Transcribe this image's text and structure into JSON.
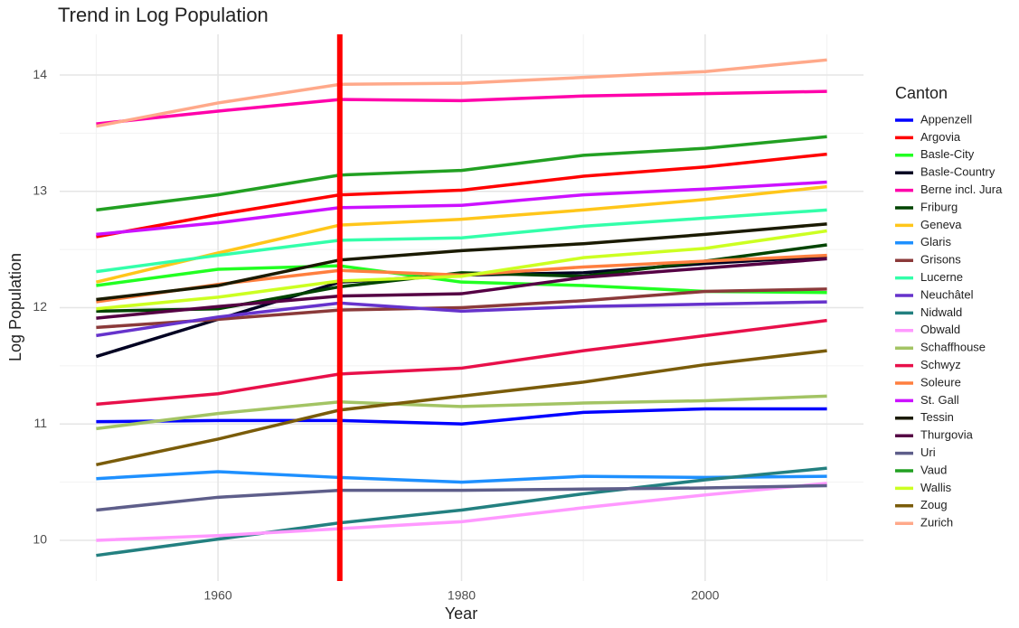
{
  "chart_data": {
    "type": "line",
    "title": "Trend in Log Population",
    "x_label": "Year",
    "y_label": "Log Population",
    "legend_title": "Canton",
    "legend": "right",
    "grid": true,
    "x": [
      1950,
      1960,
      1970,
      1980,
      1990,
      2000,
      2010
    ],
    "xlim": [
      1947,
      2013
    ],
    "ylim": [
      9.65,
      14.35
    ],
    "xticks": [
      1960,
      1980,
      2000
    ],
    "yticks": [
      10,
      11,
      12,
      13,
      14
    ],
    "minor_xticks": [
      1950,
      1970,
      1990,
      2010
    ],
    "minor_yticks": [
      10.5,
      11.5,
      12.5,
      13.5
    ],
    "vline": {
      "x": 1970,
      "color": "#ff0000"
    },
    "series": [
      {
        "name": "Appenzell",
        "color": "#0000ff",
        "values": [
          11.02,
          11.03,
          11.03,
          11.0,
          11.1,
          11.13,
          11.13
        ]
      },
      {
        "name": "Argovia",
        "color": "#ff0000",
        "values": [
          12.61,
          12.8,
          12.97,
          13.01,
          13.13,
          13.21,
          13.32
        ]
      },
      {
        "name": "Basle-City",
        "color": "#22ff22",
        "values": [
          12.19,
          12.33,
          12.36,
          12.22,
          12.19,
          12.14,
          12.13
        ]
      },
      {
        "name": "Basle-Country",
        "color": "#000022",
        "values": [
          11.58,
          11.9,
          12.22,
          12.28,
          12.3,
          12.38,
          12.44
        ]
      },
      {
        "name": "Berne incl. Jura",
        "color": "#ff00aa",
        "values": [
          13.58,
          13.69,
          13.79,
          13.78,
          13.82,
          13.84,
          13.86
        ]
      },
      {
        "name": "Friburg",
        "color": "#004400",
        "values": [
          11.97,
          11.99,
          12.18,
          12.3,
          12.27,
          12.4,
          12.54
        ]
      },
      {
        "name": "Geneva",
        "color": "#ffc61a",
        "values": [
          12.22,
          12.47,
          12.71,
          12.76,
          12.84,
          12.93,
          13.04
        ]
      },
      {
        "name": "Glaris",
        "color": "#1e90ff",
        "values": [
          10.53,
          10.59,
          10.54,
          10.5,
          10.55,
          10.54,
          10.55
        ]
      },
      {
        "name": "Grisons",
        "color": "#8b3a3a",
        "values": [
          11.83,
          11.9,
          11.98,
          12.0,
          12.06,
          12.14,
          12.16
        ]
      },
      {
        "name": "Lucerne",
        "color": "#33ffaa",
        "values": [
          12.31,
          12.45,
          12.58,
          12.6,
          12.7,
          12.77,
          12.84
        ]
      },
      {
        "name": "Neuchâtel",
        "color": "#6633cc",
        "values": [
          11.76,
          11.92,
          12.04,
          11.97,
          12.01,
          12.03,
          12.05
        ]
      },
      {
        "name": "Nidwald",
        "color": "#238080",
        "values": [
          9.87,
          10.01,
          10.15,
          10.26,
          10.4,
          10.52,
          10.62
        ]
      },
      {
        "name": "Obwald",
        "color": "#ff99ff",
        "values": [
          10.0,
          10.04,
          10.1,
          10.16,
          10.28,
          10.39,
          10.49
        ]
      },
      {
        "name": "Schaffhouse",
        "color": "#a3c464",
        "values": [
          10.96,
          11.09,
          11.19,
          11.15,
          11.18,
          11.2,
          11.24
        ]
      },
      {
        "name": "Schwyz",
        "color": "#e8104a",
        "values": [
          11.17,
          11.26,
          11.43,
          11.48,
          11.63,
          11.76,
          11.89
        ]
      },
      {
        "name": "Soleure",
        "color": "#ff7f3f",
        "values": [
          12.05,
          12.2,
          12.32,
          12.28,
          12.35,
          12.4,
          12.45
        ]
      },
      {
        "name": "St. Gall",
        "color": "#cc11ff",
        "values": [
          12.63,
          12.73,
          12.86,
          12.88,
          12.97,
          13.02,
          13.08
        ]
      },
      {
        "name": "Tessin",
        "color": "#1a1a00",
        "values": [
          12.07,
          12.19,
          12.41,
          12.49,
          12.55,
          12.63,
          12.72
        ]
      },
      {
        "name": "Thurgovia",
        "color": "#550044",
        "values": [
          11.91,
          12.01,
          12.1,
          12.12,
          12.26,
          12.34,
          12.42
        ]
      },
      {
        "name": "Uri",
        "color": "#5e5e8a",
        "values": [
          10.26,
          10.37,
          10.43,
          10.43,
          10.44,
          10.45,
          10.47
        ]
      },
      {
        "name": "Vaud",
        "color": "#22a022",
        "values": [
          12.84,
          12.97,
          13.14,
          13.18,
          13.31,
          13.37,
          13.47
        ]
      },
      {
        "name": "Wallis",
        "color": "#ccff22",
        "values": [
          11.99,
          12.09,
          12.23,
          12.27,
          12.43,
          12.51,
          12.66
        ]
      },
      {
        "name": "Zoug",
        "color": "#7a5c0a",
        "values": [
          10.65,
          10.87,
          11.12,
          11.24,
          11.36,
          11.51,
          11.63
        ]
      },
      {
        "name": "Zurich",
        "color": "#ffa98a",
        "values": [
          13.56,
          13.76,
          13.92,
          13.93,
          13.98,
          14.03,
          14.13
        ]
      }
    ]
  }
}
